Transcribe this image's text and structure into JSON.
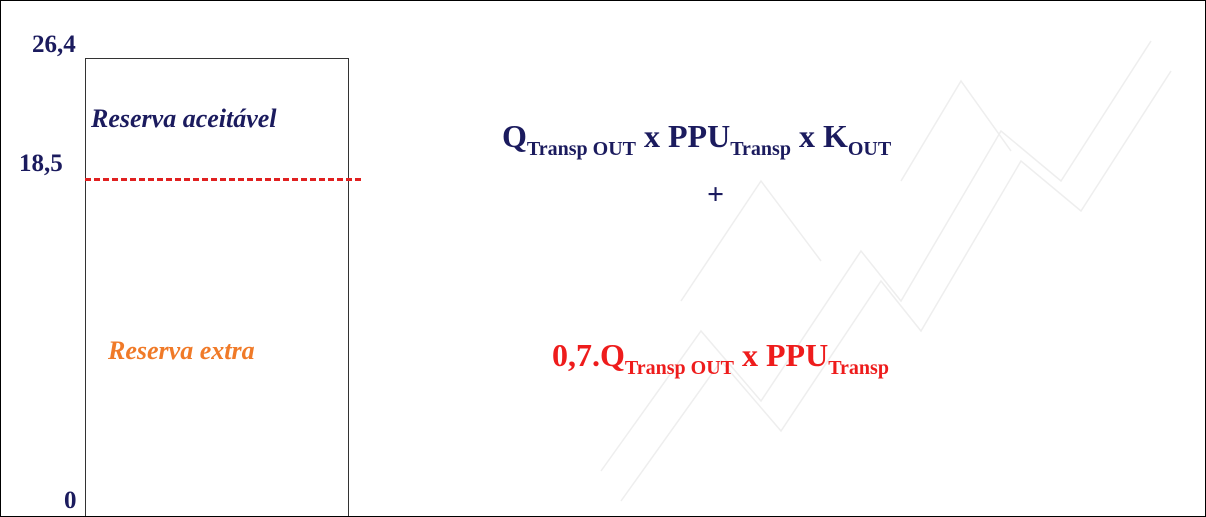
{
  "axis": {
    "top_value": "26,4",
    "threshold_value": "18,5",
    "bottom_value": "0"
  },
  "zones": {
    "upper_label": "Reserva aceitável",
    "lower_label": "Reserva extra"
  },
  "formula_top": {
    "q": "Q",
    "q_sub": "Transp OUT",
    "x1": " x ",
    "ppu": "PPU",
    "ppu_sub": "Transp",
    "x2": " x ",
    "k": "K",
    "k_sub": "OUT"
  },
  "operator": "+",
  "formula_bottom": {
    "coef": "0,7.",
    "q": "Q",
    "q_sub": "Transp OUT",
    "x1": " x ",
    "ppu": "PPU",
    "ppu_sub": "Transp"
  },
  "colors": {
    "navy": "#1b1b5e",
    "red": "#ee1c1c",
    "orange": "#f07a28",
    "dashed_line": "#e02020"
  }
}
